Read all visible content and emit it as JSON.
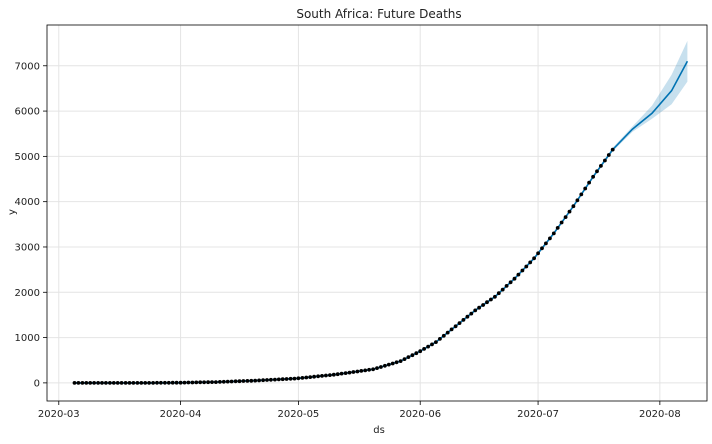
{
  "chart_data": {
    "type": "line",
    "title": "South Africa: Future Deaths",
    "xlabel": "ds",
    "ylabel": "y",
    "xlim": [
      "2020-02-27",
      "2020-08-13"
    ],
    "ylim": [
      -400,
      7900
    ],
    "grid": true,
    "x_ticks": [
      "2020-03",
      "2020-04",
      "2020-05",
      "2020-06",
      "2020-07",
      "2020-08"
    ],
    "y_ticks": [
      0,
      1000,
      2000,
      3000,
      4000,
      5000,
      6000,
      7000
    ],
    "observed_last_date": "2020-07-20",
    "observed": [
      {
        "x": "2020-03-05",
        "y": 0
      },
      {
        "x": "2020-03-15",
        "y": 0
      },
      {
        "x": "2020-03-25",
        "y": 0
      },
      {
        "x": "2020-04-01",
        "y": 5
      },
      {
        "x": "2020-04-10",
        "y": 18
      },
      {
        "x": "2020-04-20",
        "y": 50
      },
      {
        "x": "2020-05-01",
        "y": 100
      },
      {
        "x": "2020-05-10",
        "y": 180
      },
      {
        "x": "2020-05-20",
        "y": 300
      },
      {
        "x": "2020-05-27",
        "y": 480
      },
      {
        "x": "2020-06-01",
        "y": 700
      },
      {
        "x": "2020-06-05",
        "y": 900
      },
      {
        "x": "2020-06-10",
        "y": 1250
      },
      {
        "x": "2020-06-15",
        "y": 1600
      },
      {
        "x": "2020-06-20",
        "y": 1900
      },
      {
        "x": "2020-06-25",
        "y": 2300
      },
      {
        "x": "2020-06-30",
        "y": 2750
      },
      {
        "x": "2020-07-05",
        "y": 3300
      },
      {
        "x": "2020-07-10",
        "y": 3900
      },
      {
        "x": "2020-07-15",
        "y": 4550
      },
      {
        "x": "2020-07-20",
        "y": 5150
      }
    ],
    "forecast": [
      {
        "x": "2020-03-05",
        "yhat": 0,
        "lower": -20,
        "upper": 20
      },
      {
        "x": "2020-03-15",
        "yhat": 0,
        "lower": -20,
        "upper": 20
      },
      {
        "x": "2020-03-25",
        "yhat": 0,
        "lower": -20,
        "upper": 20
      },
      {
        "x": "2020-04-01",
        "yhat": 5,
        "lower": -15,
        "upper": 25
      },
      {
        "x": "2020-04-10",
        "yhat": 18,
        "lower": -2,
        "upper": 38
      },
      {
        "x": "2020-04-20",
        "yhat": 50,
        "lower": 30,
        "upper": 70
      },
      {
        "x": "2020-05-01",
        "yhat": 100,
        "lower": 80,
        "upper": 120
      },
      {
        "x": "2020-05-10",
        "yhat": 180,
        "lower": 160,
        "upper": 200
      },
      {
        "x": "2020-05-20",
        "yhat": 300,
        "lower": 280,
        "upper": 320
      },
      {
        "x": "2020-05-27",
        "yhat": 480,
        "lower": 455,
        "upper": 505
      },
      {
        "x": "2020-06-01",
        "yhat": 700,
        "lower": 675,
        "upper": 725
      },
      {
        "x": "2020-06-05",
        "yhat": 900,
        "lower": 875,
        "upper": 925
      },
      {
        "x": "2020-06-10",
        "yhat": 1250,
        "lower": 1220,
        "upper": 1280
      },
      {
        "x": "2020-06-15",
        "yhat": 1600,
        "lower": 1570,
        "upper": 1630
      },
      {
        "x": "2020-06-20",
        "yhat": 1900,
        "lower": 1870,
        "upper": 1930
      },
      {
        "x": "2020-06-25",
        "yhat": 2300,
        "lower": 2270,
        "upper": 2330
      },
      {
        "x": "2020-06-30",
        "yhat": 2750,
        "lower": 2720,
        "upper": 2780
      },
      {
        "x": "2020-07-05",
        "yhat": 3300,
        "lower": 3270,
        "upper": 3330
      },
      {
        "x": "2020-07-10",
        "yhat": 3900,
        "lower": 3870,
        "upper": 3930
      },
      {
        "x": "2020-07-15",
        "yhat": 4550,
        "lower": 4515,
        "upper": 4585
      },
      {
        "x": "2020-07-20",
        "yhat": 5150,
        "lower": 5110,
        "upper": 5190
      },
      {
        "x": "2020-07-25",
        "yhat": 5600,
        "lower": 5540,
        "upper": 5660
      },
      {
        "x": "2020-07-30",
        "yhat": 5950,
        "lower": 5830,
        "upper": 6120
      },
      {
        "x": "2020-08-04",
        "yhat": 6450,
        "lower": 6150,
        "upper": 6800
      },
      {
        "x": "2020-08-08",
        "yhat": 7100,
        "lower": 6650,
        "upper": 7550
      }
    ],
    "colors": {
      "observed": "#000000",
      "forecast_line": "#0072B2",
      "interval_fill": "#0072B2",
      "grid": "#e4e4e4",
      "axis": "#000000"
    }
  }
}
